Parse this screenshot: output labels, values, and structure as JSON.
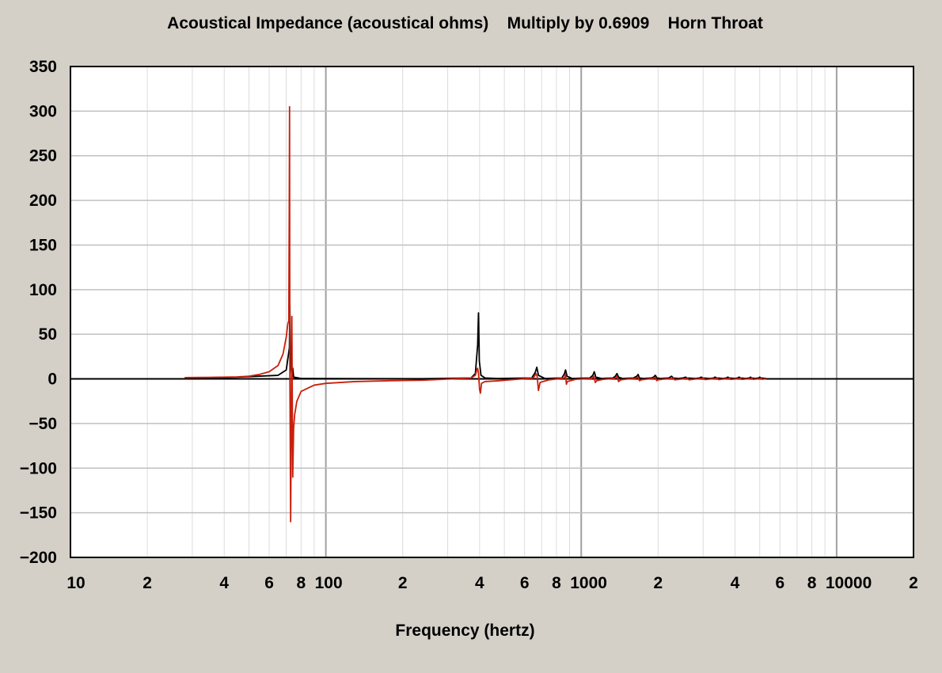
{
  "chart_data": {
    "type": "line",
    "title": "Acoustical Impedance (acoustical ohms)    Multiply by 0.6909    Horn Throat",
    "xlabel": "Frequency (hertz)",
    "ylabel": "",
    "x_scale": "log",
    "xlim": [
      10,
      20000
    ],
    "ylim": [
      -200,
      350
    ],
    "grid": true,
    "x_ticks": [
      {
        "value": 10,
        "label": "10"
      },
      {
        "value": 20,
        "label": "2"
      },
      {
        "value": 40,
        "label": "4"
      },
      {
        "value": 60,
        "label": "6"
      },
      {
        "value": 80,
        "label": "8"
      },
      {
        "value": 100,
        "label": "100"
      },
      {
        "value": 200,
        "label": "2"
      },
      {
        "value": 400,
        "label": "4"
      },
      {
        "value": 600,
        "label": "6"
      },
      {
        "value": 800,
        "label": "8"
      },
      {
        "value": 1000,
        "label": "1000"
      },
      {
        "value": 2000,
        "label": "2"
      },
      {
        "value": 4000,
        "label": "4"
      },
      {
        "value": 6000,
        "label": "6"
      },
      {
        "value": 8000,
        "label": "8"
      },
      {
        "value": 10000,
        "label": "10000"
      },
      {
        "value": 20000,
        "label": "2"
      }
    ],
    "y_ticks": [
      {
        "value": 350,
        "label": "350"
      },
      {
        "value": 300,
        "label": "300"
      },
      {
        "value": 250,
        "label": "250"
      },
      {
        "value": 200,
        "label": "200"
      },
      {
        "value": 150,
        "label": "150"
      },
      {
        "value": 100,
        "label": "100"
      },
      {
        "value": 50,
        "label": "50"
      },
      {
        "value": 0,
        "label": "0"
      },
      {
        "value": -50,
        "label": "−50"
      },
      {
        "value": -100,
        "label": "−100"
      },
      {
        "value": -150,
        "label": "−150"
      },
      {
        "value": -200,
        "label": "−200"
      }
    ],
    "series": [
      {
        "color": "#000000",
        "points": [
          [
            28,
            1
          ],
          [
            45,
            2
          ],
          [
            65,
            4
          ],
          [
            70,
            10
          ],
          [
            72,
            35
          ],
          [
            72.3,
            82
          ],
          [
            72.6,
            20
          ],
          [
            73.5,
            5
          ],
          [
            74.2,
            12
          ],
          [
            74.8,
            2
          ],
          [
            80,
            0.5
          ],
          [
            120,
            0.3
          ],
          [
            240,
            0.2
          ],
          [
            370,
            1
          ],
          [
            385,
            6
          ],
          [
            393,
            38
          ],
          [
            396,
            74
          ],
          [
            399,
            20
          ],
          [
            405,
            4
          ],
          [
            420,
            1
          ],
          [
            470,
            0.5
          ],
          [
            640,
            1
          ],
          [
            660,
            7
          ],
          [
            670,
            13
          ],
          [
            680,
            4
          ],
          [
            720,
            0.5
          ],
          [
            840,
            1
          ],
          [
            860,
            6
          ],
          [
            868,
            10
          ],
          [
            880,
            3
          ],
          [
            920,
            0.5
          ],
          [
            1080,
            1
          ],
          [
            1110,
            4
          ],
          [
            1125,
            8
          ],
          [
            1140,
            2
          ],
          [
            1200,
            0.5
          ],
          [
            1330,
            1
          ],
          [
            1360,
            3
          ],
          [
            1380,
            6
          ],
          [
            1400,
            2
          ],
          [
            1450,
            0.5
          ],
          [
            1600,
            1
          ],
          [
            1650,
            3
          ],
          [
            1670,
            5
          ],
          [
            1690,
            1
          ],
          [
            1750,
            0.5
          ],
          [
            1880,
            1
          ],
          [
            1920,
            2
          ],
          [
            1950,
            4
          ],
          [
            1980,
            1
          ],
          [
            2050,
            0.5
          ],
          [
            2200,
            1
          ],
          [
            2260,
            3
          ],
          [
            2290,
            1
          ],
          [
            2400,
            0.5
          ],
          [
            2500,
            1
          ],
          [
            2560,
            2
          ],
          [
            2600,
            1
          ],
          [
            2800,
            0.5
          ],
          [
            2900,
            1
          ],
          [
            2950,
            2
          ],
          [
            3000,
            1
          ],
          [
            3200,
            0.5
          ],
          [
            3300,
            1
          ],
          [
            3340,
            2
          ],
          [
            3400,
            1
          ],
          [
            3600,
            0.5
          ],
          [
            3700,
            1
          ],
          [
            3750,
            2
          ],
          [
            3800,
            1
          ],
          [
            4000,
            0.5
          ],
          [
            4100,
            1
          ],
          [
            4150,
            2
          ],
          [
            4200,
            1
          ],
          [
            4400,
            0.5
          ],
          [
            4550,
            1
          ],
          [
            4600,
            2
          ],
          [
            4650,
            1
          ],
          [
            4800,
            0.5
          ],
          [
            4950,
            1
          ],
          [
            5000,
            2
          ],
          [
            5050,
            1
          ],
          [
            5300,
            0.5
          ]
        ]
      },
      {
        "color": "#c8200c",
        "points": [
          [
            28,
            1.5
          ],
          [
            35,
            1.7
          ],
          [
            45,
            2.2
          ],
          [
            50,
            3
          ],
          [
            55,
            5
          ],
          [
            60,
            8
          ],
          [
            65,
            15
          ],
          [
            68,
            28
          ],
          [
            70,
            47
          ],
          [
            71,
            62
          ],
          [
            71.6,
            65
          ],
          [
            71.9,
            190
          ],
          [
            72.1,
            305
          ],
          [
            72.3,
            5
          ],
          [
            72.5,
            -55
          ],
          [
            72.8,
            -160
          ],
          [
            73.2,
            -60
          ],
          [
            73.6,
            70
          ],
          [
            74.2,
            -110
          ],
          [
            74.8,
            -55
          ],
          [
            75.5,
            -40
          ],
          [
            77,
            -25
          ],
          [
            80,
            -14
          ],
          [
            90,
            -7
          ],
          [
            100,
            -5
          ],
          [
            130,
            -3
          ],
          [
            180,
            -2
          ],
          [
            240,
            -1.5
          ],
          [
            370,
            1
          ],
          [
            385,
            4
          ],
          [
            390,
            10
          ],
          [
            393,
            12
          ],
          [
            396,
            6
          ],
          [
            400,
            -12
          ],
          [
            403,
            -16
          ],
          [
            407,
            -5
          ],
          [
            420,
            -3
          ],
          [
            480,
            -2
          ],
          [
            650,
            1
          ],
          [
            665,
            6
          ],
          [
            672,
            3
          ],
          [
            680,
            -13
          ],
          [
            690,
            -4
          ],
          [
            750,
            -1
          ],
          [
            860,
            1
          ],
          [
            868,
            5
          ],
          [
            875,
            -6
          ],
          [
            882,
            -3
          ],
          [
            950,
            -0.5
          ],
          [
            1100,
            0.5
          ],
          [
            1120,
            3
          ],
          [
            1135,
            -4
          ],
          [
            1150,
            -2
          ],
          [
            1220,
            -0.5
          ],
          [
            1350,
            0.5
          ],
          [
            1380,
            3
          ],
          [
            1400,
            -3
          ],
          [
            1430,
            -1
          ],
          [
            1500,
            -0.3
          ],
          [
            1630,
            0.5
          ],
          [
            1670,
            2
          ],
          [
            1690,
            -2
          ],
          [
            1720,
            -1
          ],
          [
            1800,
            -0.3
          ],
          [
            1920,
            0.5
          ],
          [
            1950,
            2
          ],
          [
            1975,
            -2
          ],
          [
            2000,
            -1
          ],
          [
            2100,
            -0.3
          ],
          [
            2250,
            0.3
          ],
          [
            2290,
            1
          ],
          [
            2320,
            -1
          ],
          [
            2450,
            -0.3
          ],
          [
            2560,
            0.3
          ],
          [
            2600,
            1
          ],
          [
            2640,
            -1
          ],
          [
            2800,
            -0.2
          ],
          [
            2950,
            0.3
          ],
          [
            3000,
            1
          ],
          [
            3050,
            -0.8
          ],
          [
            3200,
            -0.2
          ],
          [
            3340,
            0.3
          ],
          [
            3400,
            0.8
          ],
          [
            3450,
            -0.8
          ],
          [
            3600,
            -0.2
          ],
          [
            3750,
            0.3
          ],
          [
            3800,
            0.8
          ],
          [
            3850,
            -0.6
          ],
          [
            4000,
            -0.2
          ],
          [
            4150,
            0.3
          ],
          [
            4200,
            0.7
          ],
          [
            4250,
            -0.6
          ],
          [
            4400,
            -0.2
          ],
          [
            4600,
            0.3
          ],
          [
            4650,
            0.6
          ],
          [
            4700,
            -0.5
          ],
          [
            4850,
            -0.2
          ],
          [
            5000,
            0.3
          ],
          [
            5050,
            0.5
          ],
          [
            5100,
            -0.4
          ],
          [
            5300,
            0
          ]
        ]
      }
    ]
  }
}
